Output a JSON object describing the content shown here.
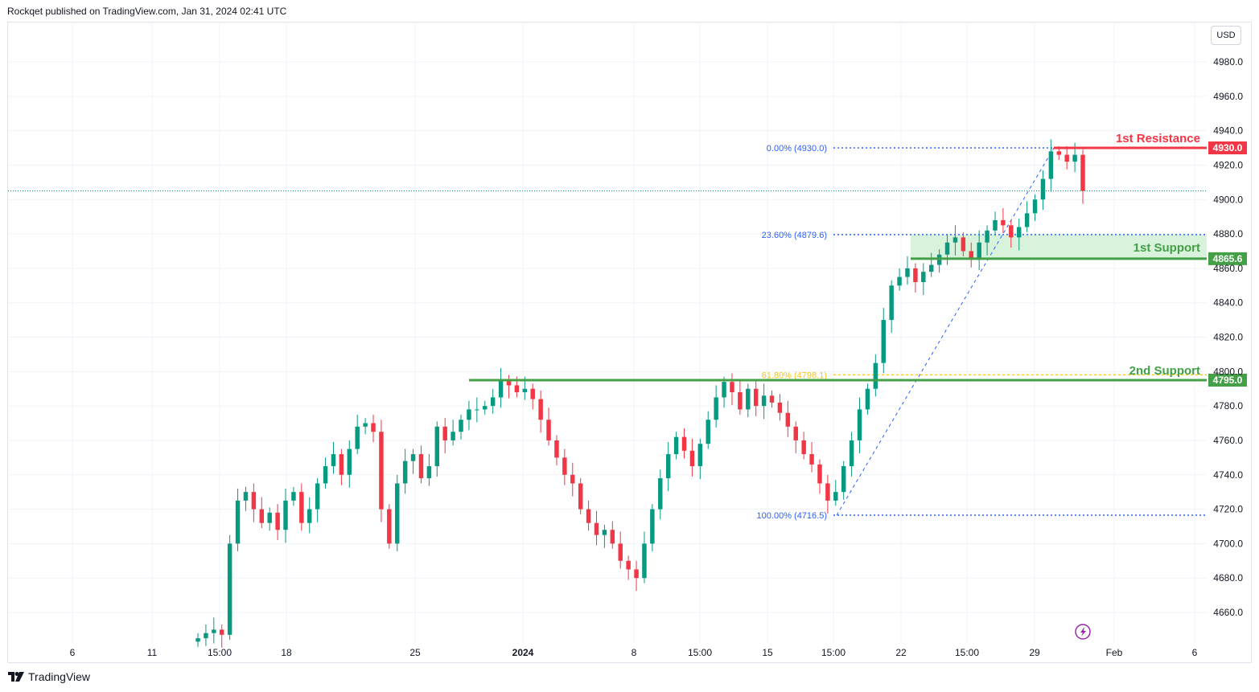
{
  "header": {
    "published": "Rockqet published on TradingView.com, Jan 31, 2024 02:41 UTC"
  },
  "currency": "USD",
  "branding": {
    "logo_text": "TradingView"
  },
  "colors": {
    "up": "#089981",
    "down": "#f23645",
    "resistance": "#f23645",
    "support": "#43a047",
    "fib_blue": "#2962ff",
    "fib_gold": "#f5c518",
    "zone_fill": "#d9f2dc",
    "grid": "#f0f3fa"
  },
  "chart_data": {
    "type": "candlestick",
    "instrument_currency": "USD",
    "ylim": [
      4640,
      4995
    ],
    "y_ticks": [
      4660,
      4680,
      4700,
      4720,
      4740,
      4760,
      4780,
      4800,
      4820,
      4840,
      4860,
      4880,
      4900,
      4920,
      4940,
      4960,
      4980
    ],
    "x_tick_labels": [
      "6",
      "11",
      "15:00",
      "18",
      "25",
      "2024",
      "8",
      "15:00",
      "15",
      "15:00",
      "22",
      "15:00",
      "29",
      "Feb",
      "6"
    ],
    "current_price_approx": 4905,
    "levels": [
      {
        "name": "1st Resistance",
        "price": 4930.0,
        "tag": "4930.0",
        "kind": "resistance"
      },
      {
        "name": "1st Support",
        "price": 4865.6,
        "tag": "4865.6",
        "kind": "support"
      },
      {
        "name": "2nd Support",
        "price": 4795.0,
        "tag": "4795.0",
        "kind": "support"
      }
    ],
    "support_zone": {
      "from": 4865.6,
      "to": 4879.6
    },
    "fibonacci": [
      {
        "label": "0.00% (4930.0)",
        "ratio": 0.0,
        "price": 4930.0
      },
      {
        "label": "23.60% (4879.6)",
        "ratio": 0.236,
        "price": 4879.6
      },
      {
        "label": "61.80% (4798.1)",
        "ratio": 0.618,
        "price": 4798.1
      },
      {
        "label": "100.00% (4716.5)",
        "ratio": 1.0,
        "price": 4716.5
      }
    ],
    "closes": [
      4645,
      4648,
      4650,
      4647,
      4700,
      4725,
      4730,
      4720,
      4712,
      4718,
      4708,
      4725,
      4730,
      4712,
      4720,
      4735,
      4745,
      4752,
      4740,
      4755,
      4768,
      4770,
      4765,
      4720,
      4700,
      4735,
      4748,
      4752,
      4738,
      4745,
      4768,
      4760,
      4765,
      4772,
      4778,
      4778,
      4780,
      4785,
      4795,
      4792,
      4788,
      4790,
      4784,
      4772,
      4760,
      4750,
      4740,
      4735,
      4720,
      4712,
      4705,
      4708,
      4700,
      4690,
      4685,
      4680,
      4700,
      4720,
      4738,
      4752,
      4762,
      4754,
      4745,
      4758,
      4772,
      4785,
      4794,
      4788,
      4778,
      4790,
      4780,
      4786,
      4782,
      4776,
      4768,
      4760,
      4752,
      4746,
      4735,
      4725,
      4730,
      4745,
      4760,
      4778,
      4790,
      4805,
      4830,
      4850,
      4855,
      4860,
      4852,
      4858,
      4862,
      4868,
      4875,
      4878,
      4870,
      4865,
      4875,
      4882,
      4888,
      4885,
      4878,
      4884,
      4892,
      4900,
      4912,
      4928,
      4926,
      4922,
      4926,
      4905
    ]
  }
}
